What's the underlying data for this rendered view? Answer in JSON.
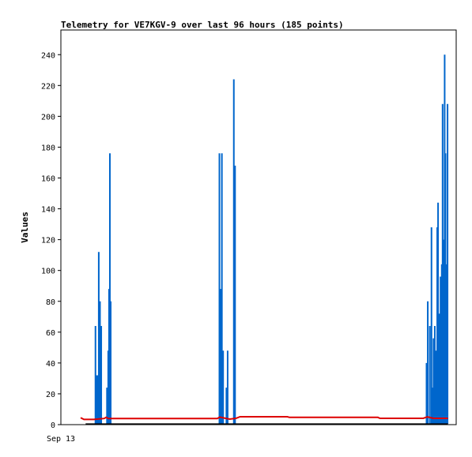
{
  "chart_data": {
    "type": "line",
    "title": "Telemetry for VE7KGV-9 over last 96 hours (185 points)",
    "ylabel": "Values",
    "xlabel": "",
    "x_tick_labels": [
      "Sep 13"
    ],
    "y_ticks": [
      0,
      20,
      40,
      60,
      80,
      100,
      120,
      140,
      160,
      180,
      200,
      220,
      240
    ],
    "ylim": [
      0,
      256
    ],
    "xlim": [
      0,
      96
    ],
    "grid": false,
    "legend": "none",
    "series": [
      {
        "color": "#0066cc",
        "style": "spikes",
        "points": [
          [
            8.4,
            64
          ],
          [
            8.6,
            32
          ],
          [
            8.9,
            32
          ],
          [
            9.2,
            112
          ],
          [
            9.5,
            80
          ],
          [
            9.8,
            64
          ],
          [
            11.2,
            24
          ],
          [
            11.5,
            48
          ],
          [
            11.7,
            88
          ],
          [
            11.9,
            176
          ],
          [
            12.1,
            80
          ],
          [
            38.5,
            176
          ],
          [
            38.8,
            88
          ],
          [
            39.1,
            176
          ],
          [
            39.4,
            48
          ],
          [
            40.2,
            24
          ],
          [
            40.5,
            48
          ],
          [
            42.0,
            224
          ],
          [
            42.3,
            168
          ],
          [
            88.8,
            40
          ],
          [
            89.1,
            80
          ],
          [
            89.6,
            64
          ],
          [
            90.0,
            128
          ],
          [
            90.3,
            24
          ],
          [
            90.5,
            56
          ],
          [
            90.8,
            64
          ],
          [
            91.1,
            48
          ],
          [
            91.4,
            128
          ],
          [
            91.6,
            144
          ],
          [
            91.9,
            72
          ],
          [
            92.2,
            96
          ],
          [
            92.5,
            104
          ],
          [
            92.7,
            208
          ],
          [
            93.0,
            120
          ],
          [
            93.2,
            240
          ],
          [
            93.4,
            176
          ],
          [
            93.7,
            104
          ],
          [
            93.9,
            208
          ]
        ]
      },
      {
        "color": "#dd0000",
        "style": "line",
        "points": [
          [
            4.8,
            4.5
          ],
          [
            5.6,
            3.4
          ],
          [
            8.0,
            3.4
          ],
          [
            10.5,
            4.0
          ],
          [
            11.0,
            4.7
          ],
          [
            11.5,
            4.0
          ],
          [
            20.0,
            4.0
          ],
          [
            30.0,
            4.0
          ],
          [
            38.0,
            4.0
          ],
          [
            38.6,
            4.9
          ],
          [
            40.0,
            4.1
          ],
          [
            41.0,
            3.6
          ],
          [
            42.5,
            4.1
          ],
          [
            43.5,
            5.1
          ],
          [
            55.0,
            5.1
          ],
          [
            55.5,
            4.7
          ],
          [
            77.0,
            4.7
          ],
          [
            77.5,
            4.1
          ],
          [
            88.0,
            4.1
          ],
          [
            89.0,
            5.0
          ],
          [
            90.5,
            4.1
          ],
          [
            93.0,
            4.1
          ],
          [
            94.0,
            4.1
          ]
        ]
      },
      {
        "color": "#000000",
        "style": "line",
        "points": [
          [
            6.0,
            0.3
          ],
          [
            94.0,
            0.3
          ]
        ]
      }
    ]
  }
}
